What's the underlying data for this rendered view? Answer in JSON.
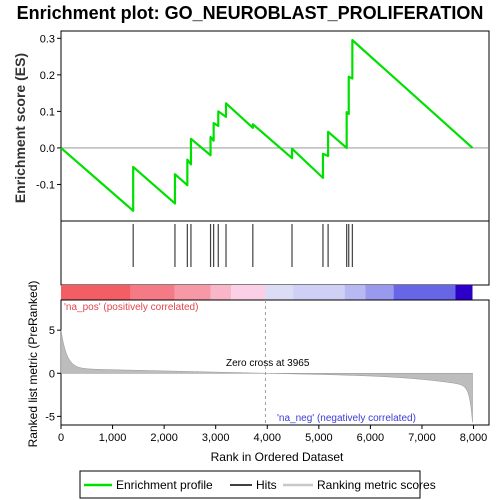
{
  "chart_data": {
    "type": "line",
    "title": "Enrichment plot: GO_NEUROBLAST_PROLIFERATION",
    "xlabel": "Rank in Ordered Dataset",
    "ylabel_es": "Enrichment score (ES)",
    "ylabel_metric": "Ranked list metric (PreRanked)",
    "xlim": [
      0,
      8300
    ],
    "es_ylim": [
      -0.2,
      0.32
    ],
    "metric_ylim": [
      -6,
      8.5
    ],
    "x_ticks": [
      0,
      1000,
      2000,
      3000,
      4000,
      5000,
      6000,
      7000,
      8000
    ],
    "x_tick_labels": [
      "0",
      "1,000",
      "2,000",
      "3,000",
      "4,000",
      "5,000",
      "6,000",
      "7,000",
      "8,000"
    ],
    "es_ticks": [
      -0.1,
      0.0,
      0.1,
      0.2,
      0.3
    ],
    "es_tick_labels": [
      "-0.1",
      "0.0",
      "0.1",
      "0.2",
      "0.3"
    ],
    "metric_ticks": [
      -5,
      0,
      5
    ],
    "metric_tick_labels": [
      "-5",
      "0",
      "5"
    ],
    "n_genes": 7980,
    "hits": [
      1400,
      2210,
      2450,
      2520,
      2900,
      2960,
      3050,
      3200,
      3720,
      4480,
      5080,
      5180,
      5540,
      5580,
      5650
    ],
    "es_profile": {
      "x": [
        0,
        1400,
        1400,
        2210,
        2210,
        2450,
        2450,
        2520,
        2520,
        2900,
        2900,
        2960,
        2960,
        3050,
        3050,
        3200,
        3200,
        3720,
        3720,
        4480,
        4480,
        5080,
        5080,
        5180,
        5180,
        5540,
        5540,
        5580,
        5580,
        5650,
        5650,
        7980
      ],
      "y": [
        0.0,
        -0.172,
        -0.052,
        -0.152,
        -0.072,
        -0.102,
        -0.032,
        -0.045,
        0.025,
        -0.02,
        0.03,
        0.02,
        0.068,
        0.06,
        0.1,
        0.085,
        0.122,
        0.055,
        0.065,
        -0.028,
        -0.002,
        -0.082,
        -0.016,
        -0.022,
        0.044,
        0.0,
        0.098,
        0.093,
        0.195,
        0.19,
        0.295,
        0.0
      ]
    },
    "zero_cross": 3965,
    "series": [
      {
        "name": "Enrichment profile",
        "color": "#00e000"
      },
      {
        "name": "Hits",
        "color": "#404040"
      },
      {
        "name": "Ranking metric scores",
        "color": "#c8c8c8"
      }
    ],
    "annotations": {
      "pos": "'na_pos' (positively correlated)",
      "neg": "'na_neg' (negatively correlated)",
      "zero": "Zero cross at 3965"
    },
    "color_bar_segments": [
      {
        "to": 1350,
        "color": "#f25e63"
      },
      {
        "to": 2200,
        "color": "#f57a85"
      },
      {
        "to": 2900,
        "color": "#f798a6"
      },
      {
        "to": 3300,
        "color": "#f9b6c8"
      },
      {
        "to": 3965,
        "color": "#fbcfe6"
      },
      {
        "to": 4500,
        "color": "#dcdcf4"
      },
      {
        "to": 5500,
        "color": "#d0d0f6"
      },
      {
        "to": 5900,
        "color": "#b8b8f2"
      },
      {
        "to": 6450,
        "color": "#9999ee"
      },
      {
        "to": 7650,
        "color": "#6666e6"
      },
      {
        "to": 7980,
        "color": "#2c00c8"
      }
    ],
    "grid": false,
    "legend_position": "bottom"
  }
}
